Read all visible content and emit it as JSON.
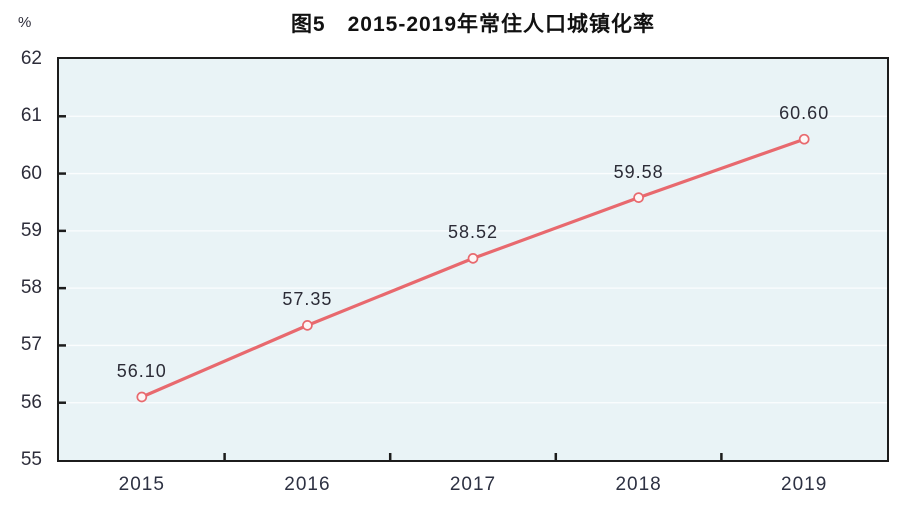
{
  "figure": {
    "title": "图5　2015-2019年常住人口城镇化率",
    "unit_label": "%"
  },
  "chart_data": {
    "type": "line",
    "title": "图5　2015-2019年常住人口城镇化率",
    "categories": [
      "2015",
      "2016",
      "2017",
      "2018",
      "2019"
    ],
    "values": [
      56.1,
      57.35,
      58.52,
      59.58,
      60.6
    ],
    "data_labels": [
      "56.10",
      "57.35",
      "58.52",
      "59.58",
      "60.60"
    ],
    "xlabel": "",
    "ylabel": "%",
    "ylim": [
      55,
      62
    ],
    "y_ticks": [
      55,
      56,
      57,
      58,
      59,
      60,
      61,
      62
    ],
    "grid": true,
    "legend": "none",
    "marker": "open-circle",
    "colors": {
      "line": "#e8696e",
      "marker_fill": "#fdf6f6",
      "plot_background": "#e9f3f6",
      "gridline": "#fbfdfe",
      "axis_border": "#1c1c1c",
      "tick_text": "#2d2d3a",
      "label_text": "#2b2b36",
      "title_text": "#111111"
    }
  }
}
